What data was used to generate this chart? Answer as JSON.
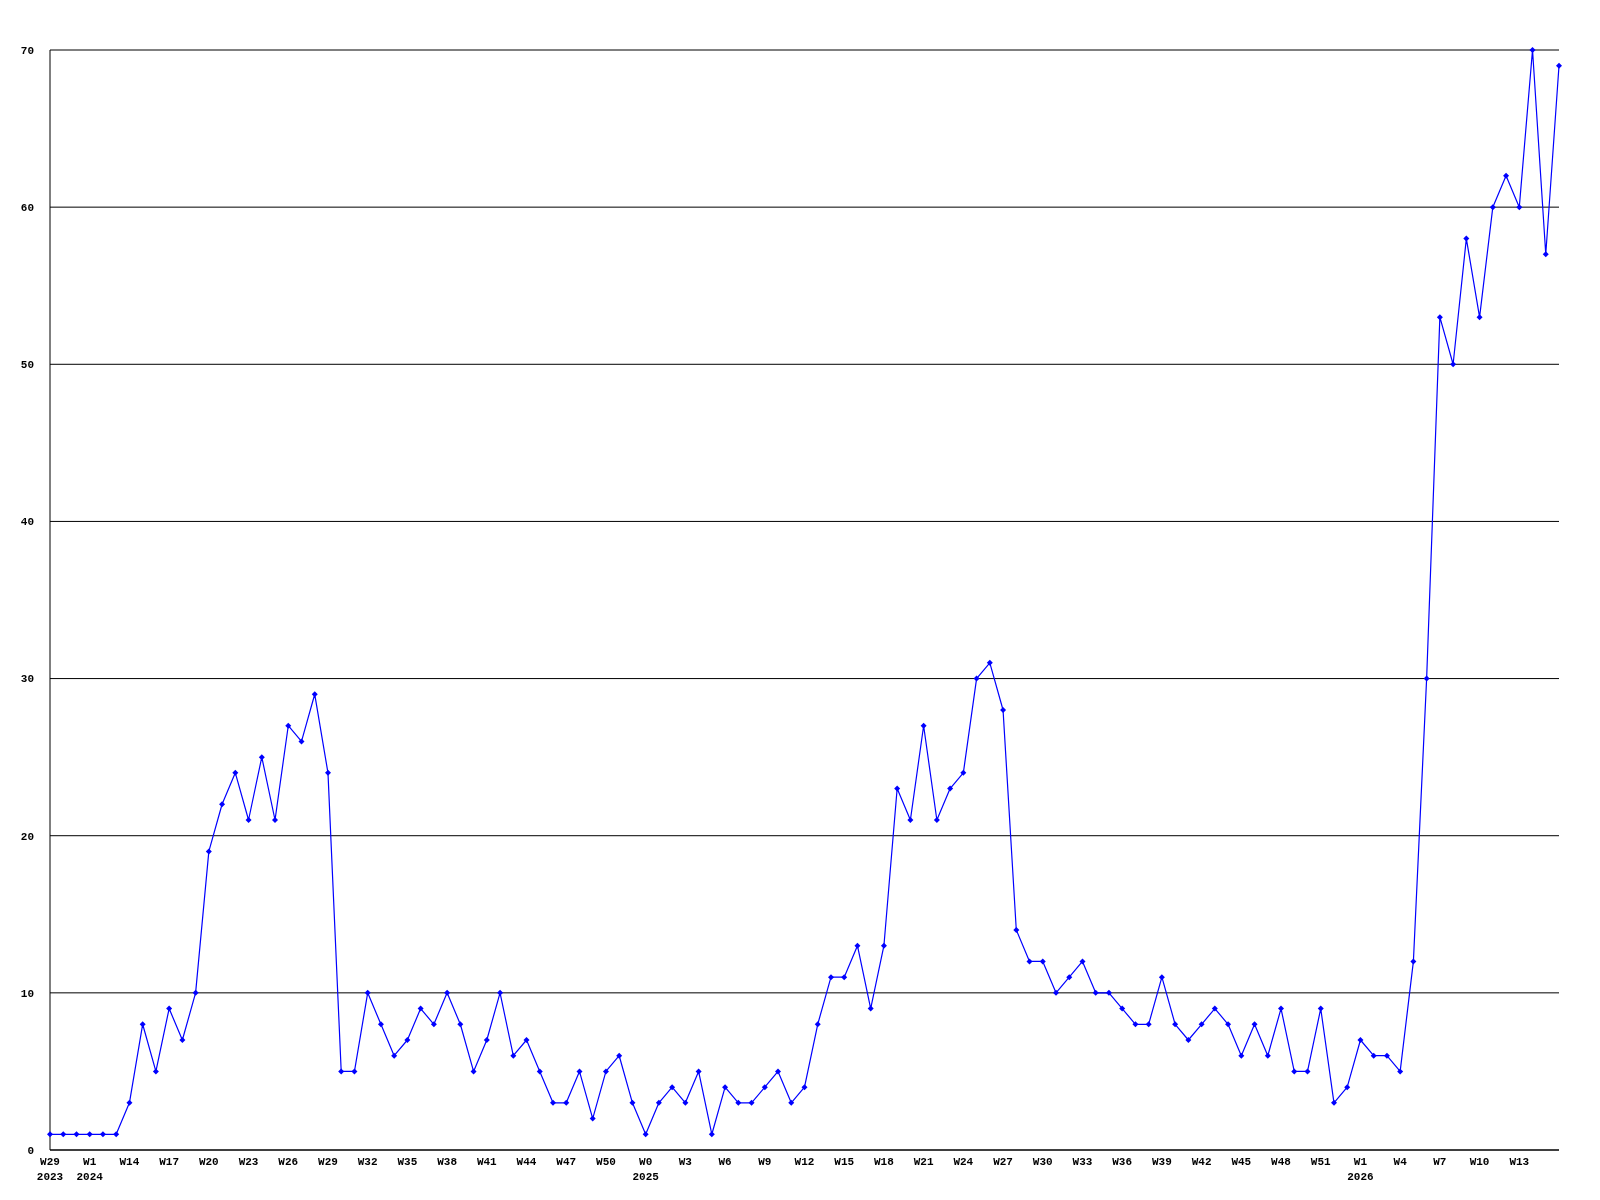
{
  "chart_data": {
    "type": "line",
    "categories": [
      "W29\n2023",
      null,
      null,
      "W1\n2024",
      null,
      null,
      "W14",
      null,
      null,
      "W17",
      null,
      null,
      "W20",
      null,
      null,
      "W23",
      null,
      null,
      "W26",
      null,
      null,
      "W29",
      null,
      null,
      "W32",
      null,
      null,
      "W35",
      null,
      null,
      "W38",
      null,
      null,
      "W41",
      null,
      null,
      "W44",
      null,
      null,
      "W47",
      null,
      null,
      "W50",
      null,
      null,
      "W0\n2025",
      null,
      null,
      "W3",
      null,
      null,
      "W6",
      null,
      null,
      "W9",
      null,
      null,
      "W12",
      null,
      null,
      "W15",
      null,
      null,
      "W18",
      null,
      null,
      "W21",
      null,
      null,
      "W24",
      null,
      null,
      "W27",
      null,
      null,
      "W30",
      null,
      null,
      "W33",
      null,
      null,
      "W36",
      null,
      null,
      "W39",
      null,
      null,
      "W42",
      null,
      null,
      "W45",
      null,
      null,
      "W48",
      null,
      null,
      "W51",
      null,
      null,
      "W1\n2026",
      null,
      null,
      "W4",
      null,
      null,
      "W7",
      null,
      null,
      "W10",
      null,
      null,
      "W13",
      null,
      null,
      null
    ],
    "series": [
      {
        "color": "#0000ff",
        "values": [
          1,
          1,
          1,
          1,
          1,
          1,
          3,
          8,
          5,
          9,
          7,
          10,
          19,
          22,
          24,
          21,
          25,
          21,
          27,
          26,
          29,
          24,
          5,
          5,
          10,
          8,
          6,
          7,
          9,
          8,
          10,
          8,
          5,
          7,
          10,
          6,
          7,
          5,
          3,
          3,
          5,
          2,
          5,
          6,
          3,
          1,
          3,
          4,
          3,
          5,
          1,
          4,
          3,
          3,
          4,
          5,
          3,
          4,
          8,
          11,
          11,
          13,
          9,
          13,
          23,
          21,
          27,
          21,
          23,
          24,
          30,
          31,
          28,
          14,
          12,
          12,
          10,
          11,
          12,
          10,
          10,
          9,
          8,
          8,
          11,
          8,
          7,
          8,
          9,
          8,
          6,
          8,
          6,
          9,
          5,
          5,
          9,
          3,
          4,
          7,
          6,
          6,
          5,
          12,
          30,
          53,
          50,
          58,
          53,
          60,
          62,
          60,
          70,
          57,
          69
        ]
      }
    ],
    "ylim": [
      0,
      70
    ],
    "yticks": [
      0,
      10,
      20,
      30,
      40,
      50,
      60,
      70
    ],
    "grid": "y",
    "marker": "diamond",
    "line_style": "solid"
  }
}
